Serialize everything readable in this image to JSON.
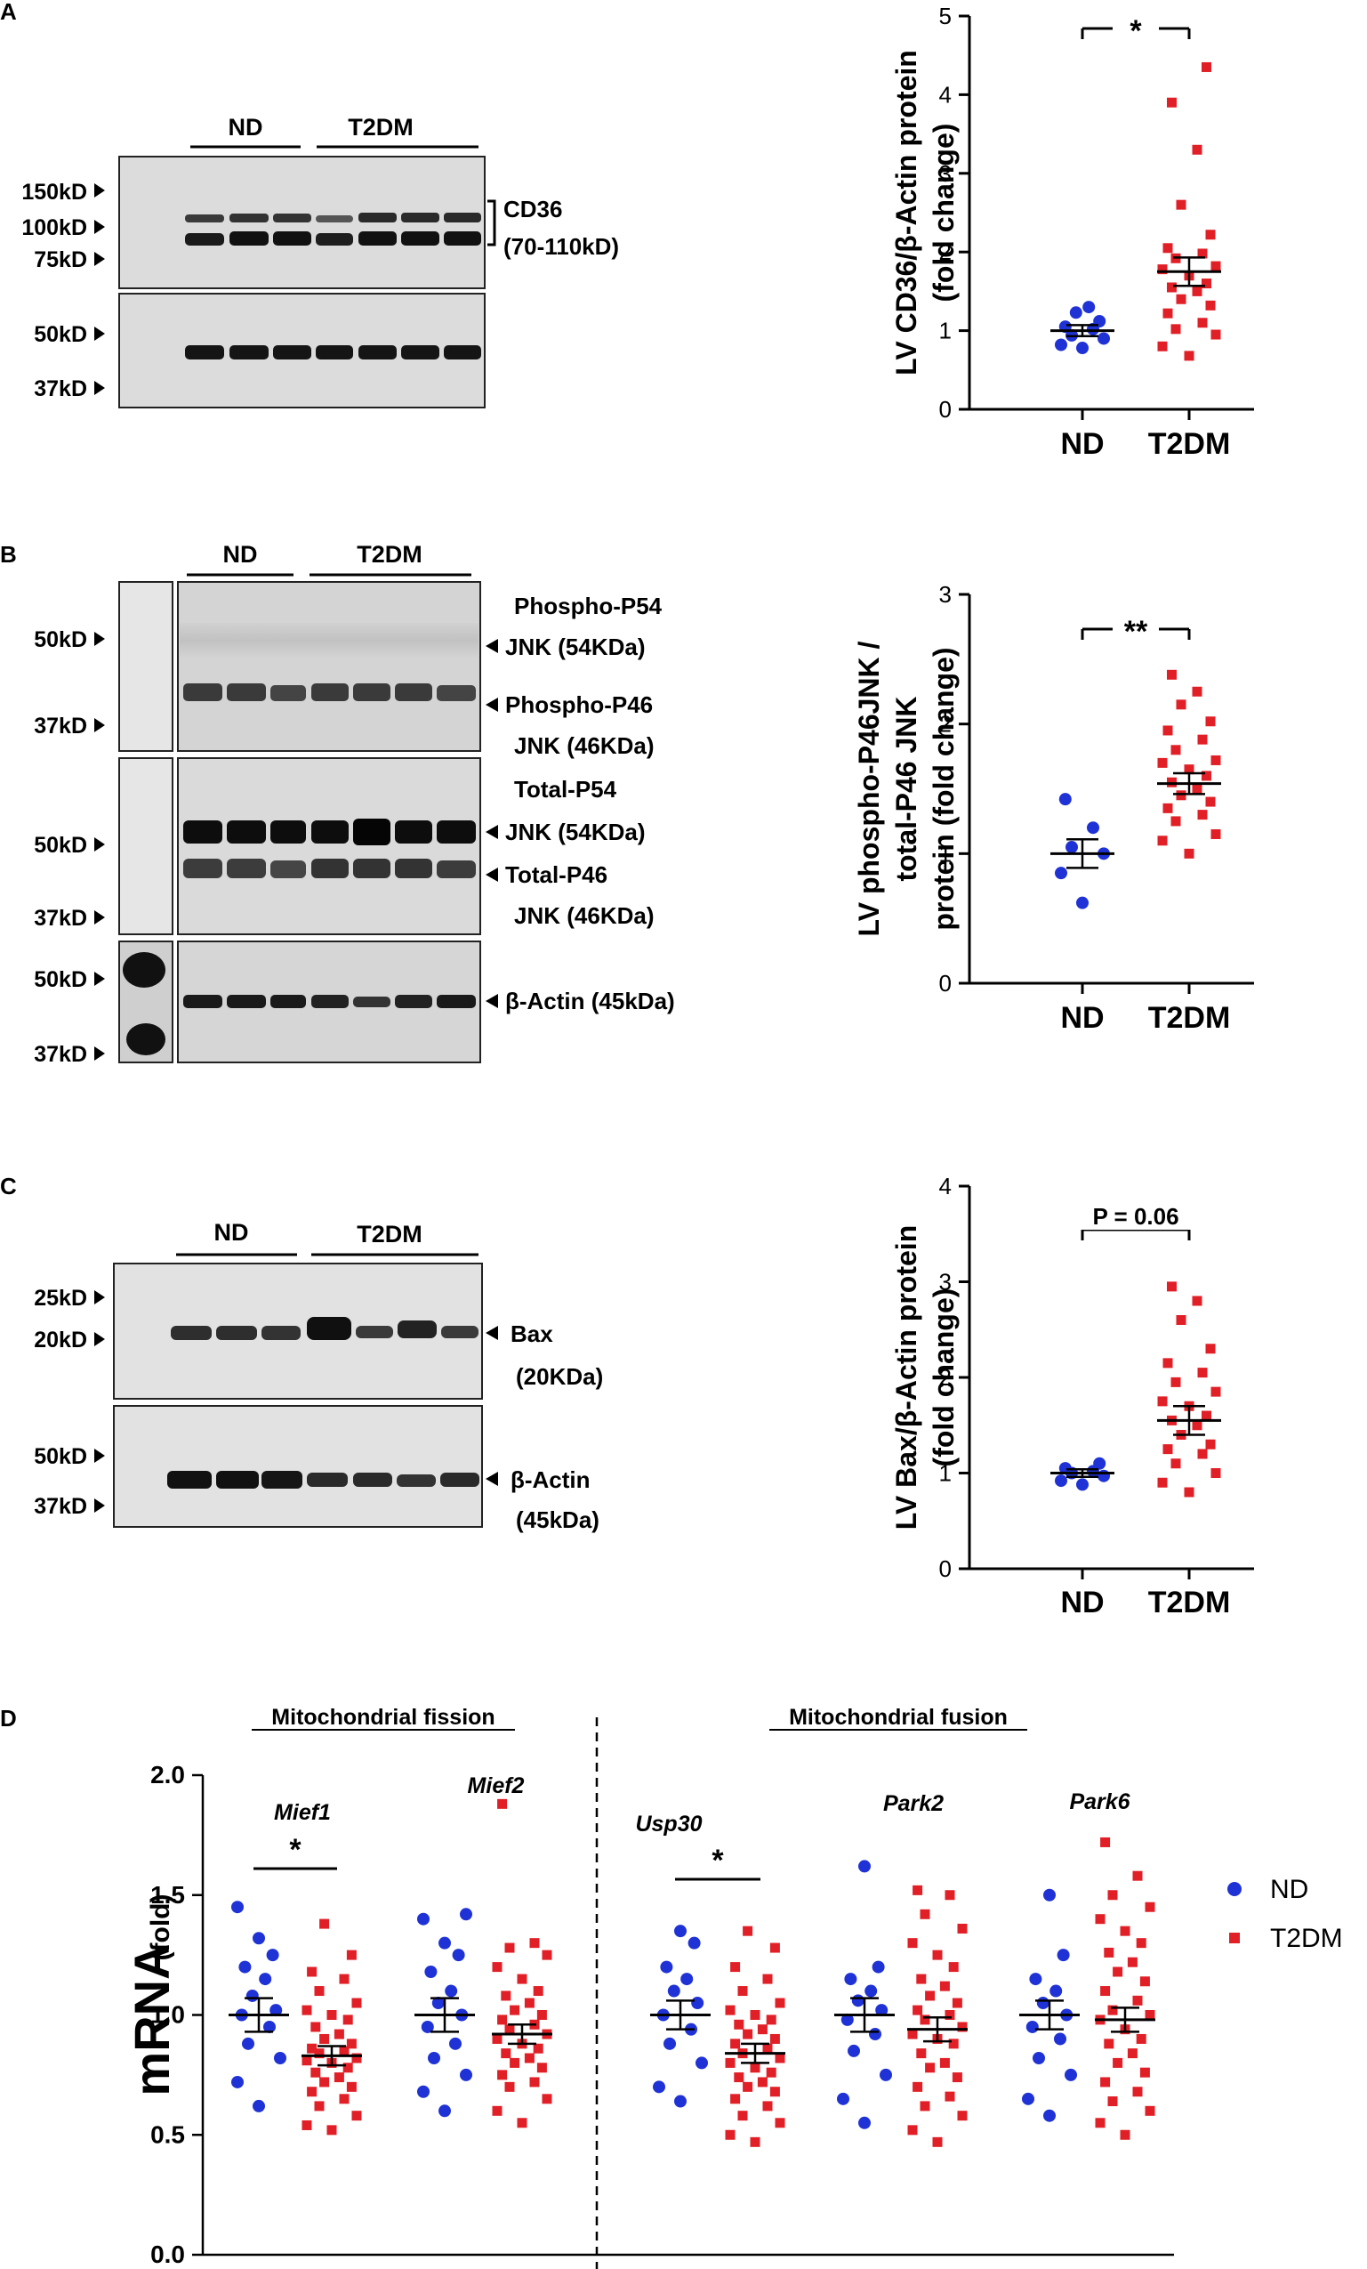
{
  "colors": {
    "nd": "#1f32d6",
    "t2dm": "#e11f26",
    "axis": "#000000"
  },
  "panels": {
    "A": {
      "letter": "A",
      "blot": {
        "groups": [
          "ND",
          "T2DM"
        ],
        "markers_top": [
          "150kD",
          "100kD",
          "75kD"
        ],
        "markers_bottom": [
          "50kD",
          "37kD"
        ],
        "target_name": "CD36",
        "target_size": "(70-110kD)"
      }
    },
    "B": {
      "letter": "B",
      "blot": {
        "groups": [
          "ND",
          "T2DM"
        ],
        "markers_phospho": [
          "50kD",
          "37kD"
        ],
        "markers_total": [
          "50kD",
          "37kD"
        ],
        "markers_actin": [
          "50kD",
          "37kD"
        ],
        "label_p54_l1": "Phospho-P54",
        "label_p54_l2": "JNK (54KDa)",
        "label_p46_l1": "Phospho-P46",
        "label_p46_l2": "JNK (46KDa)",
        "label_t54_l1": "Total-P54",
        "label_t54_l2": "JNK (54KDa)",
        "label_t46_l1": "Total-P46",
        "label_t46_l2": "JNK (46KDa)",
        "label_actin": "β-Actin (45kDa)"
      }
    },
    "C": {
      "letter": "C",
      "blot": {
        "groups": [
          "ND",
          "T2DM"
        ],
        "markers_top": [
          "25kD",
          "20kD"
        ],
        "markers_bottom": [
          "50kD",
          "37kD"
        ],
        "label_bax_l1": "Bax",
        "label_bax_l2": "(20KDa)",
        "label_actin_l1": "β-Actin",
        "label_actin_l2": "(45kDa)"
      }
    },
    "D": {
      "letter": "D"
    }
  },
  "chart_data": [
    {
      "id": "A",
      "type": "scatter",
      "title": "",
      "ylabel_lines": [
        "LV CD36/β-Actin protein",
        "(fold change)"
      ],
      "categories": [
        "ND",
        "T2DM"
      ],
      "ylim": [
        0,
        5
      ],
      "yticks": [
        0,
        1,
        2,
        3,
        4,
        5
      ],
      "significance": "*",
      "series": [
        {
          "name": "ND",
          "mean": 1.0,
          "sem": 0.07,
          "values": [
            0.78,
            0.82,
            0.9,
            0.94,
            1.02,
            1.05,
            1.12,
            1.23,
            1.3
          ]
        },
        {
          "name": "T2DM",
          "mean": 1.75,
          "sem": 0.18,
          "values": [
            0.68,
            0.8,
            0.95,
            1.02,
            1.1,
            1.22,
            1.32,
            1.4,
            1.5,
            1.55,
            1.6,
            1.7,
            1.78,
            1.82,
            1.92,
            1.98,
            2.05,
            2.22,
            2.6,
            3.3,
            3.9,
            4.35
          ]
        }
      ]
    },
    {
      "id": "B",
      "type": "scatter",
      "title": "",
      "ylabel_lines": [
        "LV phospho-P46JNK /",
        "total-P46 JNK",
        "protein (fold change)"
      ],
      "categories": [
        "ND",
        "T2DM"
      ],
      "ylim": [
        0,
        3
      ],
      "yticks": [
        0,
        1,
        2,
        3
      ],
      "significance": "**",
      "series": [
        {
          "name": "ND",
          "mean": 1.0,
          "sem": 0.11,
          "values": [
            0.62,
            0.85,
            1.0,
            1.05,
            1.2,
            1.42
          ]
        },
        {
          "name": "T2DM",
          "mean": 1.54,
          "sem": 0.08,
          "values": [
            1.0,
            1.1,
            1.15,
            1.25,
            1.3,
            1.35,
            1.4,
            1.45,
            1.5,
            1.55,
            1.6,
            1.65,
            1.7,
            1.72,
            1.8,
            1.88,
            1.95,
            2.02,
            2.15,
            2.25,
            2.38
          ]
        }
      ]
    },
    {
      "id": "C",
      "type": "scatter",
      "title": "",
      "ylabel_lines": [
        "LV Bax/β-Actin protein",
        "(fold change)"
      ],
      "categories": [
        "ND",
        "T2DM"
      ],
      "ylim": [
        0,
        4
      ],
      "yticks": [
        0,
        1,
        2,
        3,
        4
      ],
      "significance": "P = 0.06",
      "series": [
        {
          "name": "ND",
          "mean": 1.0,
          "sem": 0.04,
          "values": [
            0.88,
            0.92,
            0.97,
            1.0,
            1.02,
            1.05,
            1.1
          ]
        },
        {
          "name": "T2DM",
          "mean": 1.55,
          "sem": 0.15,
          "values": [
            0.8,
            0.9,
            1.0,
            1.1,
            1.2,
            1.25,
            1.3,
            1.4,
            1.5,
            1.55,
            1.6,
            1.7,
            1.75,
            1.85,
            1.95,
            2.05,
            2.15,
            2.3,
            2.6,
            2.8,
            2.95
          ]
        }
      ]
    },
    {
      "id": "D",
      "type": "scatter",
      "title": "",
      "ylabel": "mRNA",
      "ylabel_unit": "(fold)",
      "ylim": [
        0,
        2
      ],
      "yticks": [
        "0.0",
        "0.5",
        "1.0",
        "1.5",
        "2.0"
      ],
      "section_labels": [
        "Mitochondrial fission",
        "Mitochondrial fusion"
      ],
      "legend": [
        "ND",
        "T2DM"
      ],
      "genes": [
        {
          "name": "Mief1",
          "significance": "*",
          "nd": {
            "mean": 1.0,
            "sem": 0.07,
            "values": [
              0.62,
              0.72,
              0.82,
              0.88,
              0.95,
              1.0,
              1.02,
              1.08,
              1.15,
              1.2,
              1.25,
              1.32,
              1.45
            ]
          },
          "t2dm": {
            "mean": 0.83,
            "sem": 0.04,
            "values": [
              0.52,
              0.54,
              0.58,
              0.62,
              0.65,
              0.68,
              0.7,
              0.72,
              0.74,
              0.76,
              0.78,
              0.8,
              0.81,
              0.82,
              0.84,
              0.85,
              0.86,
              0.88,
              0.9,
              0.92,
              0.95,
              0.98,
              1.0,
              1.02,
              1.05,
              1.1,
              1.15,
              1.18,
              1.25,
              1.38
            ]
          }
        },
        {
          "name": "Mief2",
          "significance": "",
          "nd": {
            "mean": 1.0,
            "sem": 0.07,
            "values": [
              0.6,
              0.68,
              0.75,
              0.82,
              0.88,
              0.95,
              1.0,
              1.05,
              1.1,
              1.18,
              1.25,
              1.3,
              1.4,
              1.42
            ]
          },
          "t2dm": {
            "mean": 0.92,
            "sem": 0.04,
            "values": [
              0.55,
              0.6,
              0.65,
              0.7,
              0.72,
              0.75,
              0.78,
              0.8,
              0.82,
              0.84,
              0.86,
              0.88,
              0.9,
              0.92,
              0.94,
              0.96,
              0.98,
              1.0,
              1.02,
              1.05,
              1.08,
              1.1,
              1.15,
              1.2,
              1.25,
              1.28,
              1.3,
              1.88
            ]
          }
        },
        {
          "name": "Usp30",
          "significance": "*",
          "nd": {
            "mean": 1.0,
            "sem": 0.06,
            "values": [
              0.64,
              0.7,
              0.8,
              0.88,
              0.94,
              1.0,
              1.05,
              1.1,
              1.15,
              1.2,
              1.3,
              1.35
            ]
          },
          "t2dm": {
            "mean": 0.84,
            "sem": 0.04,
            "values": [
              0.47,
              0.5,
              0.55,
              0.58,
              0.62,
              0.65,
              0.68,
              0.7,
              0.72,
              0.74,
              0.76,
              0.78,
              0.8,
              0.82,
              0.84,
              0.86,
              0.88,
              0.9,
              0.92,
              0.94,
              0.96,
              0.98,
              1.0,
              1.02,
              1.05,
              1.1,
              1.15,
              1.2,
              1.28,
              1.35
            ]
          }
        },
        {
          "name": "Park2",
          "significance": "",
          "nd": {
            "mean": 1.0,
            "sem": 0.07,
            "values": [
              0.55,
              0.65,
              0.75,
              0.85,
              0.92,
              0.98,
              1.02,
              1.06,
              1.1,
              1.15,
              1.2,
              1.62
            ]
          },
          "t2dm": {
            "mean": 0.94,
            "sem": 0.05,
            "values": [
              0.47,
              0.52,
              0.58,
              0.62,
              0.66,
              0.7,
              0.74,
              0.78,
              0.8,
              0.84,
              0.88,
              0.9,
              0.92,
              0.95,
              0.98,
              1.0,
              1.02,
              1.05,
              1.08,
              1.12,
              1.15,
              1.2,
              1.25,
              1.3,
              1.36,
              1.42,
              1.5,
              1.52
            ]
          }
        },
        {
          "name": "Park6",
          "significance": "",
          "nd": {
            "mean": 1.0,
            "sem": 0.06,
            "values": [
              0.58,
              0.65,
              0.75,
              0.82,
              0.9,
              0.95,
              1.0,
              1.05,
              1.1,
              1.15,
              1.25,
              1.5
            ]
          },
          "t2dm": {
            "mean": 0.98,
            "sem": 0.05,
            "values": [
              0.5,
              0.55,
              0.6,
              0.64,
              0.68,
              0.72,
              0.76,
              0.8,
              0.84,
              0.88,
              0.9,
              0.94,
              0.98,
              1.0,
              1.02,
              1.06,
              1.1,
              1.14,
              1.18,
              1.22,
              1.26,
              1.3,
              1.35,
              1.4,
              1.45,
              1.5,
              1.58,
              1.72
            ]
          }
        }
      ]
    }
  ]
}
